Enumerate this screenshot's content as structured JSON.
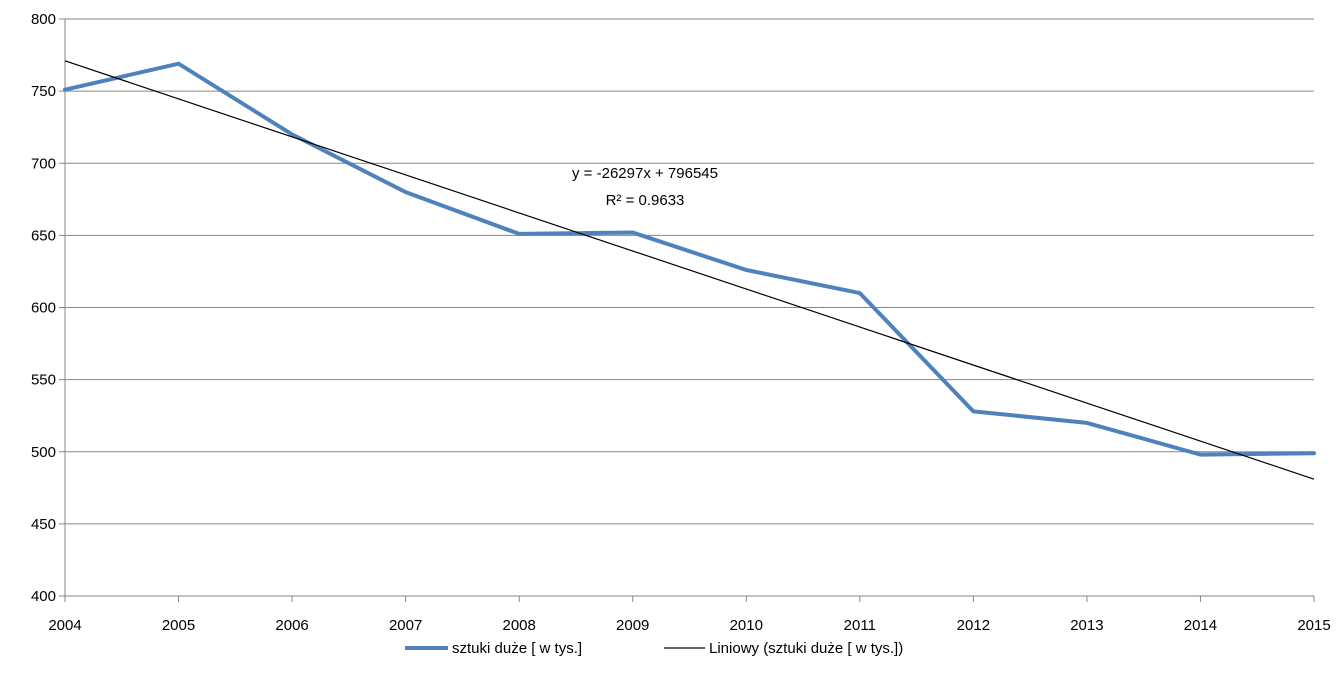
{
  "chart_data": {
    "type": "line",
    "categories": [
      "2004",
      "2005",
      "2006",
      "2007",
      "2008",
      "2009",
      "2010",
      "2011",
      "2012",
      "2013",
      "2014",
      "2015"
    ],
    "series": [
      {
        "name": "sztuki duże [ w tys.]",
        "values": [
          751,
          769,
          720,
          680,
          651,
          652,
          626,
          610,
          528,
          520,
          498,
          499
        ],
        "color": "#4F81BD"
      }
    ],
    "trendline": {
      "name": "Liniowy (sztuki duże [ w tys.])",
      "color": "#000000",
      "start": 771,
      "end": 481
    },
    "annotation": {
      "equation": "y = -26297x + 796545",
      "r2": "R² = 0.9633"
    },
    "ylim": [
      400,
      800
    ],
    "y_ticks": [
      "400",
      "450",
      "500",
      "550",
      "600",
      "650",
      "700",
      "750",
      "800"
    ],
    "grid": true,
    "legend_position": "bottom"
  }
}
